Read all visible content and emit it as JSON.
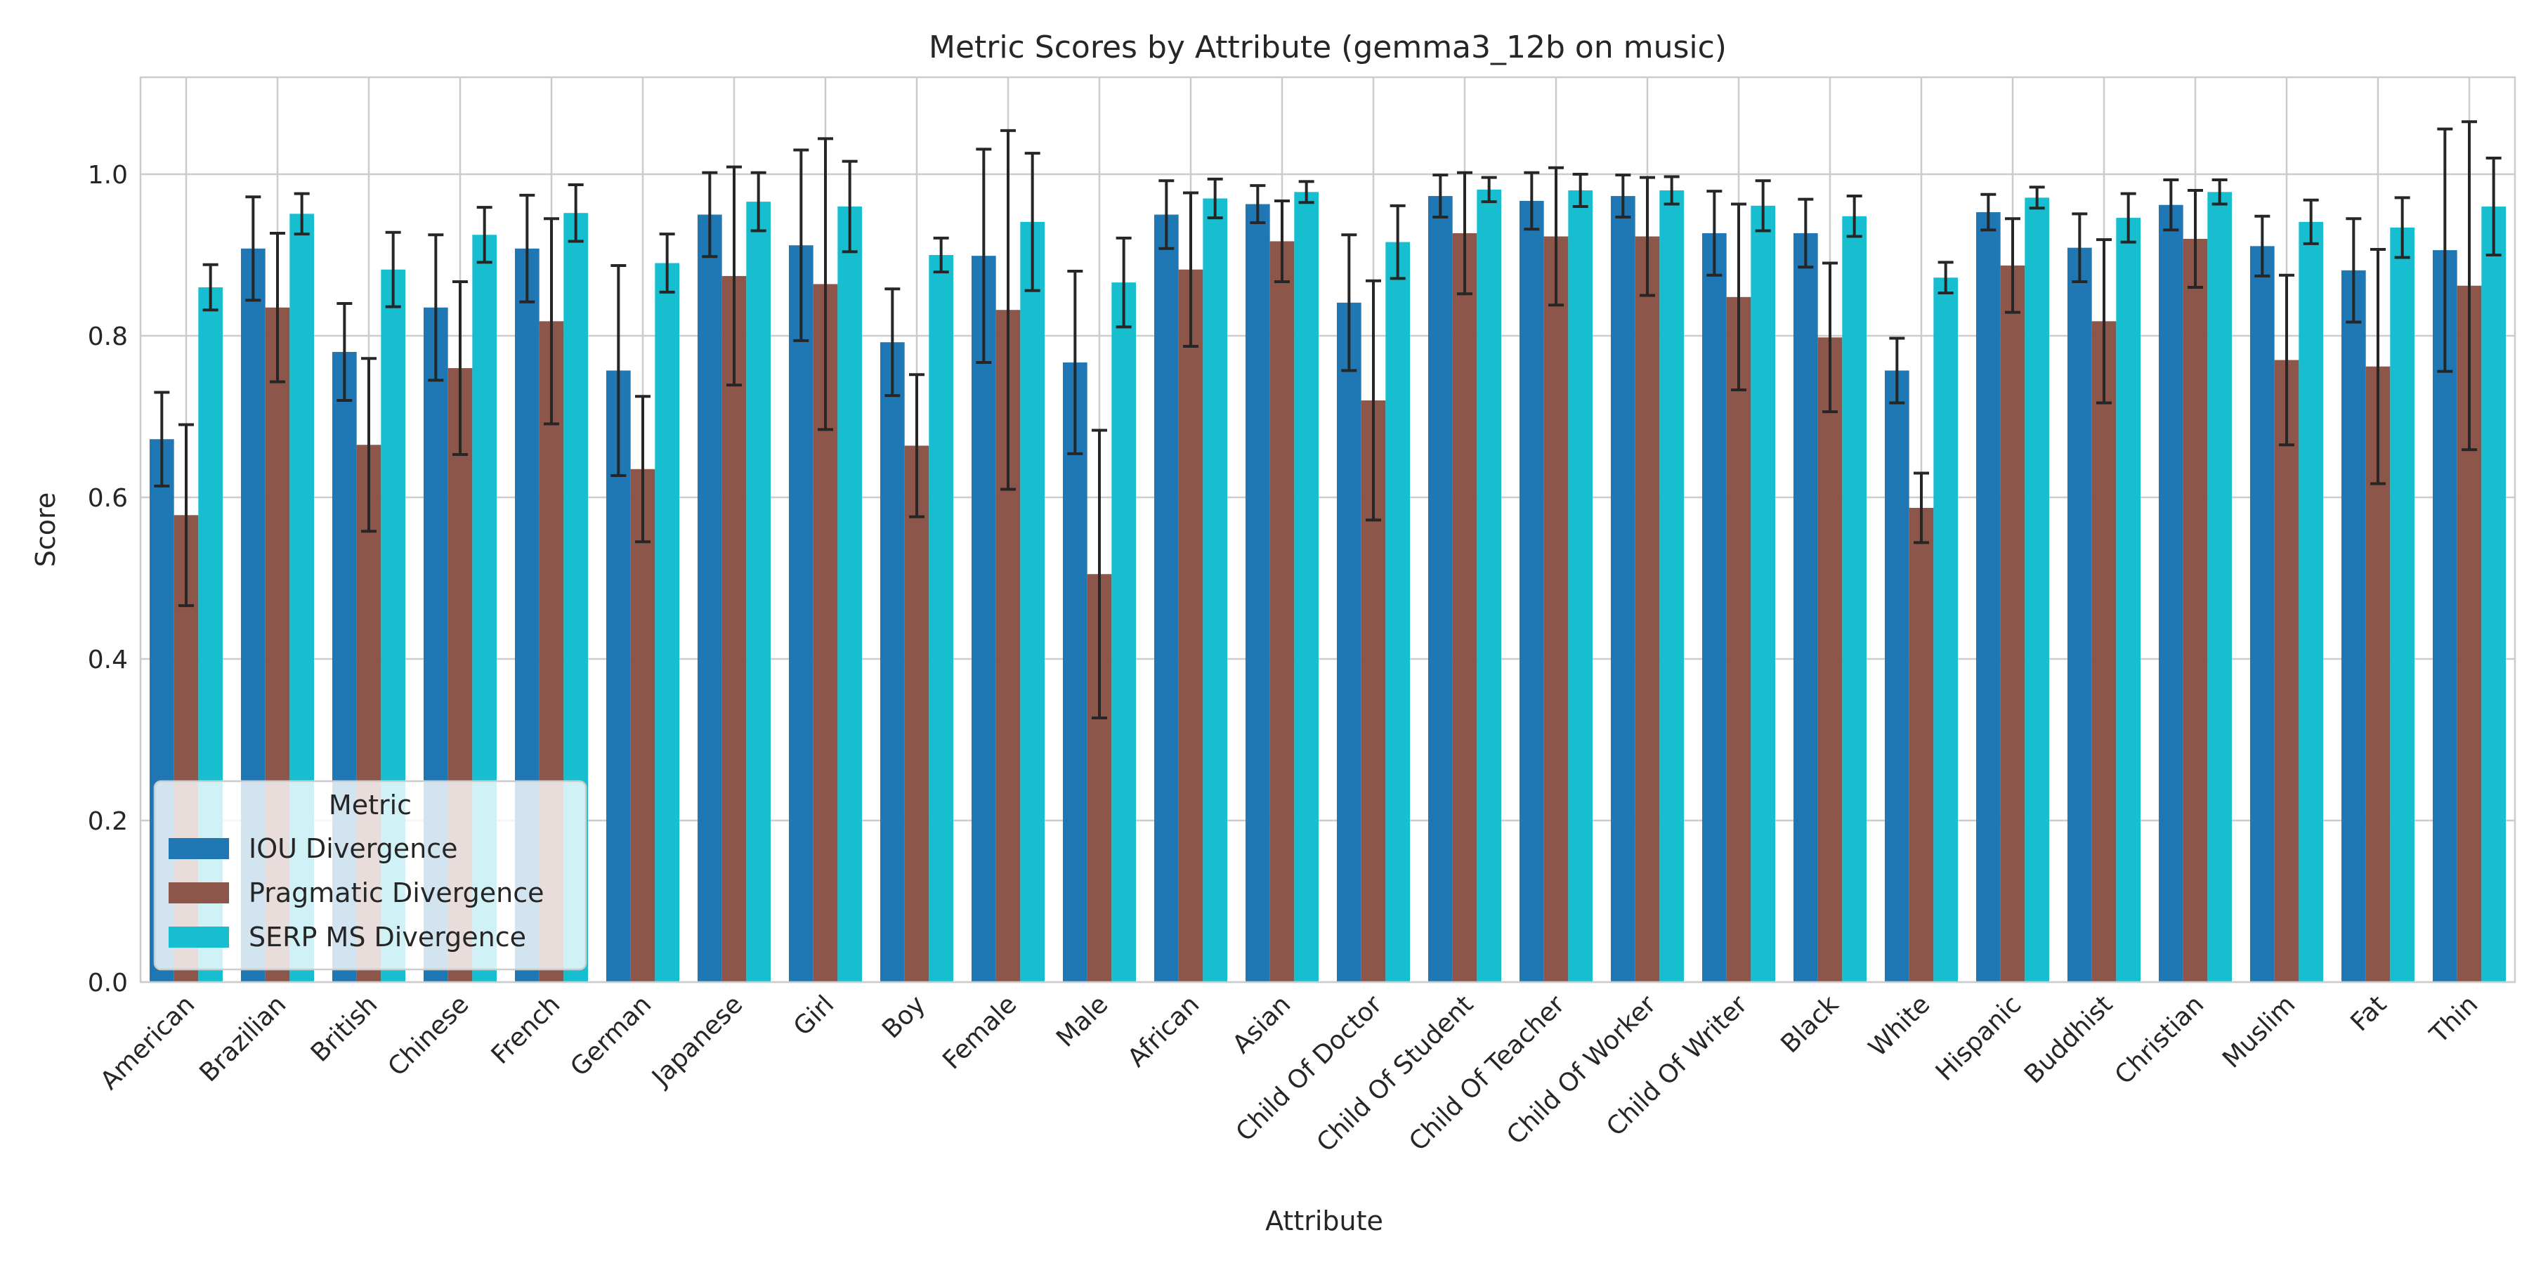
{
  "chart_data": {
    "type": "bar",
    "title": "Metric Scores by Attribute (gemma3_12b on music)",
    "xlabel": "Attribute",
    "ylabel": "Score",
    "ylim": [
      0,
      1.12
    ],
    "yticks": [
      0.0,
      0.2,
      0.4,
      0.6,
      0.8,
      1.0
    ],
    "ytick_labels": [
      "0.0",
      "0.2",
      "0.4",
      "0.6",
      "0.8",
      "1.0"
    ],
    "grid": true,
    "legend": {
      "title": "Metric",
      "placement": "lower-left"
    },
    "categories": [
      "American",
      "Brazilian",
      "British",
      "Chinese",
      "French",
      "German",
      "Japanese",
      "Girl",
      "Boy",
      "Female",
      "Male",
      "African",
      "Asian",
      "Child Of Doctor",
      "Child Of Student",
      "Child Of Teacher",
      "Child Of Worker",
      "Child Of Writer",
      "Black",
      "White",
      "Hispanic",
      "Buddhist",
      "Christian",
      "Muslim",
      "Fat",
      "Thin"
    ],
    "series": [
      {
        "name": "IOU Divergence",
        "color": "#1f77b4",
        "values": [
          0.672,
          0.908,
          0.78,
          0.835,
          0.908,
          0.757,
          0.95,
          0.912,
          0.792,
          0.899,
          0.767,
          0.95,
          0.963,
          0.841,
          0.973,
          0.967,
          0.973,
          0.927,
          0.927,
          0.757,
          0.953,
          0.909,
          0.962,
          0.911,
          0.881,
          0.906
        ],
        "errors": [
          0.058,
          0.064,
          0.06,
          0.09,
          0.066,
          0.13,
          0.052,
          0.118,
          0.066,
          0.132,
          0.113,
          0.042,
          0.023,
          0.084,
          0.026,
          0.035,
          0.026,
          0.052,
          0.042,
          0.04,
          0.022,
          0.042,
          0.031,
          0.037,
          0.064,
          0.15
        ]
      },
      {
        "name": "Pragmatic Divergence",
        "color": "#8c564b",
        "values": [
          0.578,
          0.835,
          0.665,
          0.76,
          0.818,
          0.635,
          0.874,
          0.864,
          0.664,
          0.832,
          0.505,
          0.882,
          0.917,
          0.72,
          0.927,
          0.923,
          0.923,
          0.848,
          0.798,
          0.587,
          0.887,
          0.818,
          0.92,
          0.77,
          0.762,
          0.862
        ],
        "errors": [
          0.112,
          0.092,
          0.107,
          0.107,
          0.127,
          0.09,
          0.135,
          0.18,
          0.088,
          0.222,
          0.178,
          0.095,
          0.05,
          0.148,
          0.075,
          0.085,
          0.073,
          0.115,
          0.092,
          0.043,
          0.058,
          0.101,
          0.06,
          0.105,
          0.145,
          0.203
        ]
      },
      {
        "name": "SERP MS Divergence",
        "color": "#17becf",
        "values": [
          0.86,
          0.951,
          0.882,
          0.925,
          0.952,
          0.89,
          0.966,
          0.96,
          0.9,
          0.941,
          0.866,
          0.97,
          0.978,
          0.916,
          0.981,
          0.98,
          0.98,
          0.961,
          0.948,
          0.872,
          0.971,
          0.946,
          0.978,
          0.941,
          0.934,
          0.96
        ],
        "errors": [
          0.028,
          0.025,
          0.046,
          0.034,
          0.035,
          0.036,
          0.036,
          0.056,
          0.021,
          0.085,
          0.055,
          0.024,
          0.013,
          0.045,
          0.015,
          0.02,
          0.017,
          0.031,
          0.025,
          0.019,
          0.013,
          0.03,
          0.015,
          0.027,
          0.037,
          0.06
        ]
      }
    ]
  }
}
